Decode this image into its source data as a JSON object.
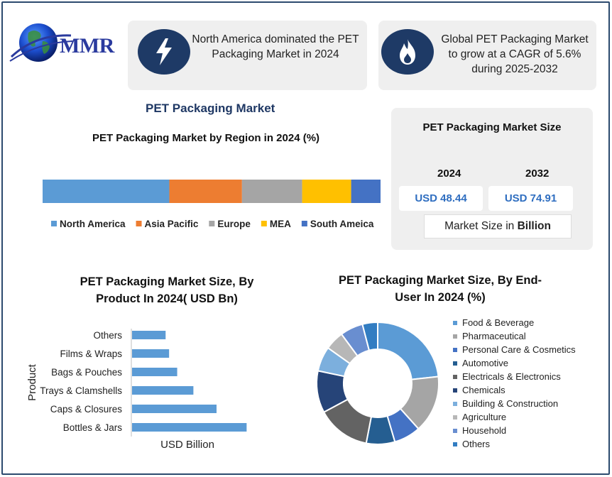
{
  "brand": {
    "logo_text": "MMR"
  },
  "header": {
    "card1": {
      "icon": "lightning-icon",
      "text_line1": "North America dominated the PET",
      "text_line2": "Packaging Market in 2024"
    },
    "card2": {
      "icon": "flame-icon",
      "text_line1": "Global PET Packaging Market",
      "text_line2": "to grow at a CAGR of 5.6%",
      "text_line3": "during 2025-2032"
    }
  },
  "main_title": "PET Packaging Market",
  "market_size": {
    "title": "PET Packaging Market Size",
    "year1": "2024",
    "year2": "2032",
    "value1": "USD 48.44",
    "value2": "USD 74.91",
    "unit_prefix": "Market Size in ",
    "unit_bold": "Billion"
  },
  "colors": {
    "accent_dark": "#1e3a66",
    "title_blue": "#1f3864",
    "value_blue": "#2f6ec0"
  },
  "chart_data": [
    {
      "type": "bar",
      "orientation": "horizontal-stacked",
      "title": "PET Packaging Market by Region in 2024 (%)",
      "series": [
        {
          "name": "North America",
          "value": 37.5,
          "color": "#5b9bd5"
        },
        {
          "name": "Asia Pacific",
          "value": 21.5,
          "color": "#ed7d31"
        },
        {
          "name": "Europe",
          "value": 17.8,
          "color": "#a5a5a5"
        },
        {
          "name": "MEA",
          "value": 14.5,
          "color": "#ffc000"
        },
        {
          "name": "South Ameica",
          "value": 8.7,
          "color": "#4472c4"
        }
      ],
      "legend": "bottom"
    },
    {
      "type": "bar",
      "orientation": "horizontal",
      "title_line1": "PET Packaging Market Size, By",
      "title_line2": "Product In 2024( USD Bn)",
      "xlabel": "USD Billion",
      "ylabel": "Product",
      "categories": [
        "Others",
        "Films & Wraps",
        "Bags & Pouches",
        "Trays & Clamshells",
        "Caps & Closures",
        "Bottles & Jars"
      ],
      "values": [
        2.9,
        3.2,
        3.9,
        5.3,
        7.3,
        9.9
      ],
      "xlim": [
        0,
        10
      ],
      "color": "#5b9bd5"
    },
    {
      "type": "pie",
      "variant": "donut",
      "title_line1": "PET Packaging Market Size, By End-",
      "title_line2": "User In 2024 (%)",
      "categories": [
        "Food & Beverage",
        "Pharmaceutical",
        "Personal Care & Cosmetics",
        "Automotive",
        "Electricals & Electronics",
        "Chemicals",
        "Building & Construction",
        "Agriculture",
        "Household",
        "Others"
      ],
      "values": [
        23,
        15,
        7,
        7.5,
        14,
        11,
        6.5,
        5,
        6,
        4
      ],
      "colors": [
        "#5b9bd5",
        "#a5a5a5",
        "#4472c4",
        "#255e91",
        "#636363",
        "#264478",
        "#7cafdd",
        "#b7b7b7",
        "#698ed0",
        "#327dc2"
      ],
      "legend": "right"
    }
  ]
}
